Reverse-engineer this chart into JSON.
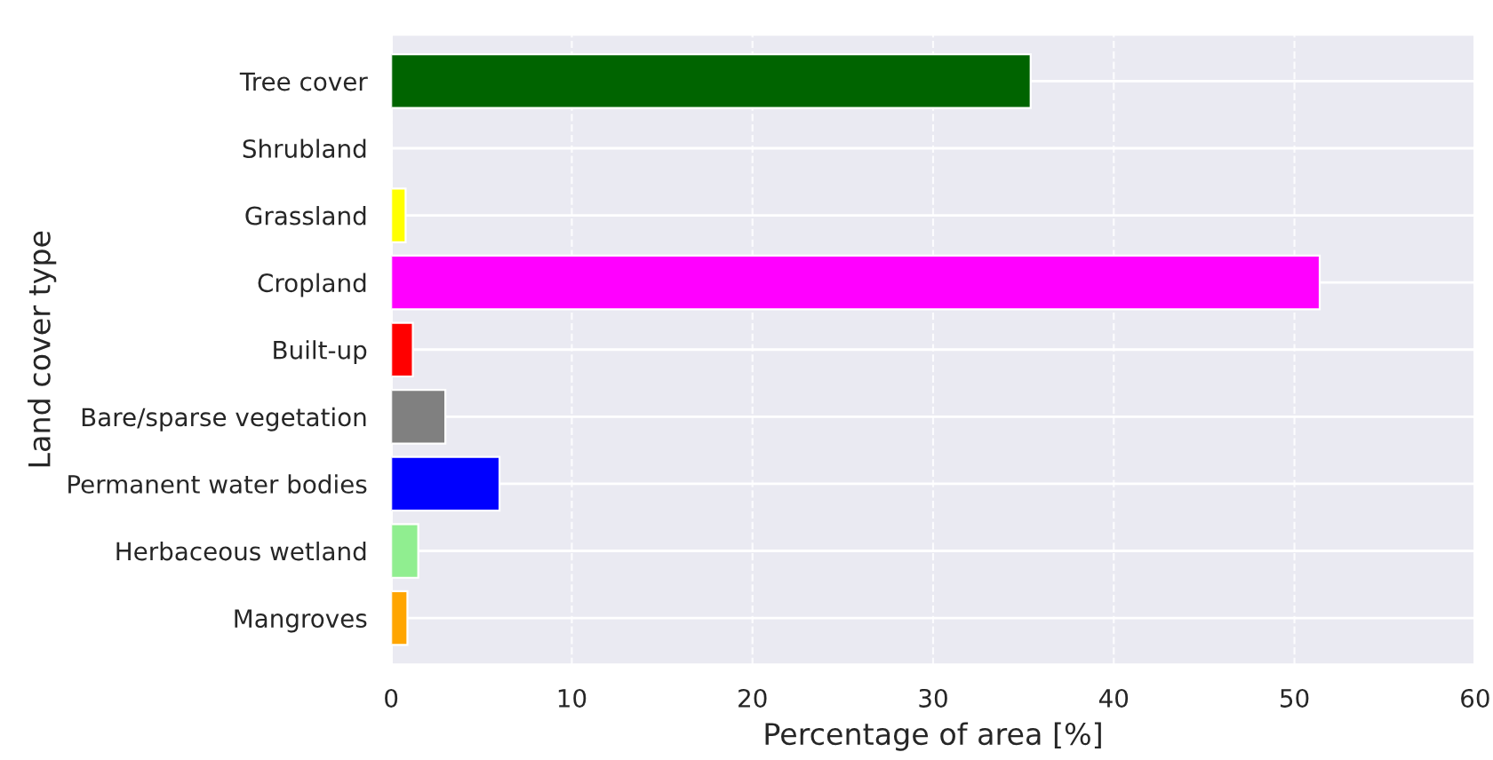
{
  "chart_data": {
    "type": "bar",
    "orientation": "horizontal",
    "xlabel": "Percentage of area [%]",
    "ylabel": "Land cover type",
    "categories": [
      "Tree cover",
      "Shrubland",
      "Grassland",
      "Cropland",
      "Built-up",
      "Bare/sparse vegetation",
      "Permanent water bodies",
      "Herbaceous wetland",
      "Mangroves"
    ],
    "values": [
      35.4,
      null,
      0.8,
      51.4,
      1.2,
      3.0,
      6.0,
      1.5,
      0.9
    ],
    "colors": [
      "#006400",
      null,
      "#ffff00",
      "#ff00ff",
      "#ff0000",
      "#808080",
      "#0000ff",
      "#90ee90",
      "#ffa500"
    ],
    "xlim": [
      0,
      60
    ],
    "xticks": [
      0,
      10,
      20,
      30,
      40,
      50,
      60
    ],
    "grid": true
  }
}
